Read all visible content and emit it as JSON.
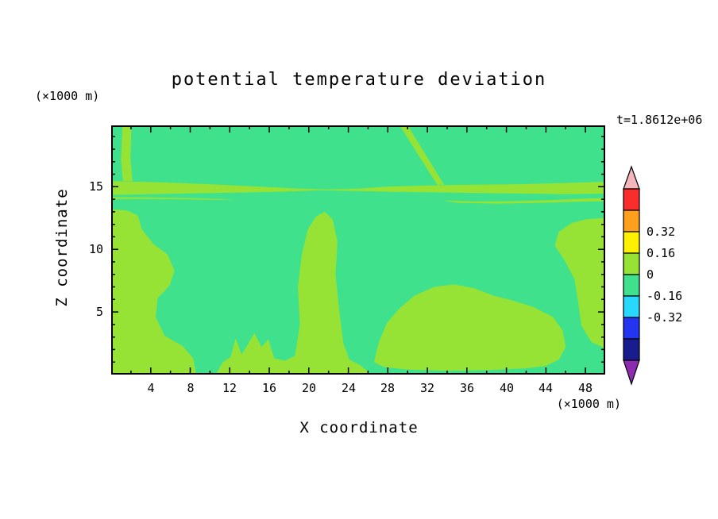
{
  "figure": {
    "title": "potential temperature deviation",
    "time_label": "t=1.8612e+06",
    "background": "#ffffff"
  },
  "axes": {
    "x_title": "X coordinate",
    "x_unit": "(×1000 m)",
    "z_title": "Z coordinate",
    "z_unit": "(×1000 m)",
    "x_tick_labels": [
      "4",
      "8",
      "12",
      "16",
      "20",
      "24",
      "28",
      "32",
      "36",
      "40",
      "44",
      "48"
    ],
    "z_tick_labels": [
      "15",
      "10",
      "5"
    ]
  },
  "chart_data": {
    "type": "contour",
    "title": "potential temperature deviation",
    "field": "potential temperature deviation",
    "time_annotation": "t=1.8612e+06",
    "x_label": "X coordinate",
    "x_unit": "(×1000 m)",
    "z_label": "Z coordinate",
    "z_unit": "(×1000 m)",
    "x_max": 50,
    "z_max": 19.9,
    "x_ticks": [
      4,
      8,
      12,
      16,
      20,
      24,
      28,
      32,
      36,
      40,
      44,
      48
    ],
    "z_ticks": [
      5,
      10,
      15
    ],
    "x_major_step": 4,
    "x_minor_step": 2,
    "z_major_step": 5,
    "z_minor_step": 1,
    "contour_interval": 0.16,
    "colorbar_boundary_labels": [
      "0.32",
      "0.16",
      "0",
      "-0.16",
      "-0.32"
    ],
    "colorbar_arrow_top": "#f4b6ba",
    "colorbar_arrow_bottom": "#8d2bb0",
    "colorbar_segments": [
      {
        "color": "#fa2d2d",
        "lower": 0.48
      },
      {
        "color": "#ff9f1e",
        "lower": 0.32
      },
      {
        "color": "#fff000",
        "lower": 0.16
      },
      {
        "color": "#97e335",
        "lower": 0
      },
      {
        "color": "#40e18c",
        "lower": -0.16
      },
      {
        "color": "#29d8ff",
        "lower": -0.32
      },
      {
        "color": "#2335f0",
        "lower": -0.48
      },
      {
        "color": "#181c8c",
        "lower": -0.64
      }
    ],
    "colors": {
      "positive_band": "#97e335",
      "negative_band": "#40e18c"
    },
    "value_bands_visible": [
      {
        "range": [
          0,
          0.16
        ],
        "color": "#97e335"
      },
      {
        "range": [
          -0.16,
          0
        ],
        "color": "#40e18c"
      }
    ],
    "zero_contour_regions": [
      {
        "name": "upper-band",
        "points": [
          [
            0,
            15.45
          ],
          [
            5,
            15.35
          ],
          [
            10,
            15.2
          ],
          [
            15,
            15.0
          ],
          [
            19,
            14.85
          ],
          [
            22,
            14.78
          ],
          [
            25,
            14.85
          ],
          [
            28,
            15.0
          ],
          [
            32,
            15.1
          ],
          [
            36,
            15.15
          ],
          [
            41,
            15.2
          ],
          [
            46,
            15.3
          ],
          [
            50,
            15.4
          ],
          [
            50,
            14.45
          ],
          [
            46,
            14.4
          ],
          [
            42,
            14.45
          ],
          [
            37,
            14.5
          ],
          [
            33,
            14.55
          ],
          [
            28,
            14.6
          ],
          [
            24,
            14.68
          ],
          [
            21,
            14.72
          ],
          [
            18,
            14.62
          ],
          [
            14,
            14.55
          ],
          [
            10,
            14.5
          ],
          [
            5,
            14.42
          ],
          [
            0,
            14.35
          ]
        ]
      },
      {
        "name": "band-sliver-left",
        "points": [
          [
            0,
            14.18
          ],
          [
            4,
            14.15
          ],
          [
            8,
            14.1
          ],
          [
            11,
            14.02
          ],
          [
            12.5,
            13.92
          ],
          [
            11,
            13.95
          ],
          [
            7,
            14.0
          ],
          [
            3,
            14.02
          ],
          [
            0,
            14.02
          ]
        ]
      },
      {
        "name": "band-sliver-right",
        "points": [
          [
            33.5,
            13.9
          ],
          [
            37,
            13.82
          ],
          [
            41,
            13.85
          ],
          [
            45,
            13.95
          ],
          [
            48,
            14.05
          ],
          [
            50,
            14.1
          ],
          [
            50,
            13.85
          ],
          [
            47,
            13.8
          ],
          [
            43,
            13.7
          ],
          [
            39,
            13.65
          ],
          [
            35,
            13.72
          ]
        ]
      },
      {
        "name": "left-top-wisp",
        "points": [
          [
            1.2,
            15.45
          ],
          [
            1.0,
            17.2
          ],
          [
            1.15,
            19.9
          ],
          [
            2.05,
            19.9
          ],
          [
            1.95,
            17.2
          ],
          [
            2.15,
            15.45
          ]
        ]
      },
      {
        "name": "mid-top-wisp",
        "points": [
          [
            29.2,
            19.9
          ],
          [
            30.0,
            19.9
          ],
          [
            33.7,
            15.15
          ],
          [
            33.0,
            15.15
          ]
        ]
      },
      {
        "name": "lower-left-region",
        "points": [
          [
            0,
            0
          ],
          [
            8.6,
            0
          ],
          [
            8.3,
            1.3
          ],
          [
            7.2,
            2.3
          ],
          [
            5.4,
            3.1
          ],
          [
            4.5,
            4.6
          ],
          [
            4.7,
            6.1
          ],
          [
            5.9,
            7.1
          ],
          [
            6.4,
            8.3
          ],
          [
            5.7,
            9.6
          ],
          [
            4.3,
            10.4
          ],
          [
            3.1,
            11.6
          ],
          [
            2.7,
            12.7
          ],
          [
            1.6,
            13.1
          ],
          [
            0,
            13.2
          ]
        ]
      },
      {
        "name": "bottom-strip-and-plume",
        "points": [
          [
            10.6,
            0
          ],
          [
            11.3,
            1.0
          ],
          [
            12.1,
            1.4
          ],
          [
            12.6,
            2.9
          ],
          [
            13.2,
            1.6
          ],
          [
            13.9,
            2.5
          ],
          [
            14.5,
            3.3
          ],
          [
            15.2,
            2.2
          ],
          [
            15.9,
            2.8
          ],
          [
            16.5,
            1.3
          ],
          [
            17.6,
            1.1
          ],
          [
            18.6,
            1.5
          ],
          [
            19.1,
            4.0
          ],
          [
            18.9,
            7.0
          ],
          [
            19.3,
            9.6
          ],
          [
            19.9,
            11.6
          ],
          [
            20.7,
            12.6
          ],
          [
            21.6,
            13.0
          ],
          [
            22.4,
            12.4
          ],
          [
            22.9,
            10.6
          ],
          [
            22.7,
            8.0
          ],
          [
            23.1,
            5.0
          ],
          [
            23.5,
            2.5
          ],
          [
            24.1,
            1.2
          ],
          [
            25.1,
            0.8
          ],
          [
            25.9,
            0.3
          ],
          [
            26.2,
            0
          ]
        ]
      },
      {
        "name": "lower-right-blob",
        "points": [
          [
            26.6,
            1.0
          ],
          [
            27.1,
            2.6
          ],
          [
            27.9,
            4.1
          ],
          [
            29.2,
            5.3
          ],
          [
            30.7,
            6.3
          ],
          [
            32.7,
            7.0
          ],
          [
            34.7,
            7.2
          ],
          [
            36.7,
            6.9
          ],
          [
            38.7,
            6.3
          ],
          [
            40.7,
            5.9
          ],
          [
            42.7,
            5.4
          ],
          [
            44.7,
            4.6
          ],
          [
            45.7,
            3.5
          ],
          [
            46.0,
            2.2
          ],
          [
            45.3,
            1.2
          ],
          [
            44.0,
            0.7
          ],
          [
            42.0,
            0.5
          ],
          [
            38.0,
            0.35
          ],
          [
            34.0,
            0.3
          ],
          [
            30.0,
            0.4
          ],
          [
            27.6,
            0.6
          ]
        ]
      },
      {
        "name": "right-edge-lobe",
        "points": [
          [
            50,
            2.1
          ],
          [
            48.6,
            2.6
          ],
          [
            47.6,
            3.9
          ],
          [
            47.3,
            5.6
          ],
          [
            46.9,
            7.6
          ],
          [
            45.9,
            9.1
          ],
          [
            44.9,
            10.3
          ],
          [
            45.3,
            11.4
          ],
          [
            46.6,
            12.1
          ],
          [
            48.1,
            12.4
          ],
          [
            50,
            12.5
          ]
        ]
      }
    ]
  }
}
